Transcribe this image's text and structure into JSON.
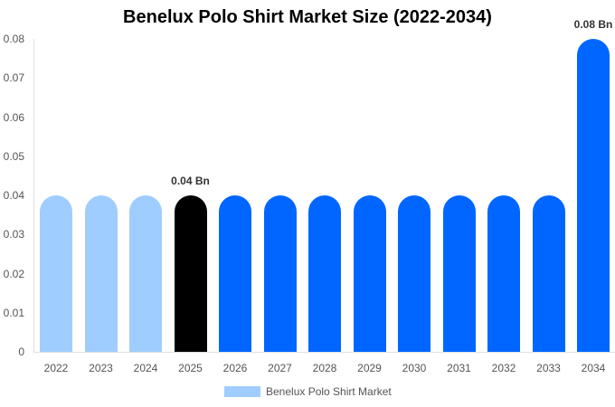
{
  "chart_data": {
    "type": "bar",
    "title": "Benelux Polo Shirt Market Size (2022-2034)",
    "xlabel": "",
    "ylabel": "",
    "ylim": [
      0,
      0.08
    ],
    "yticks": [
      "0.08",
      "0.07",
      "0.06",
      "0.05",
      "0.04",
      "0.03",
      "0.02",
      "0.01",
      "0"
    ],
    "categories": [
      "2022",
      "2023",
      "2024",
      "2025",
      "2026",
      "2027",
      "2028",
      "2029",
      "2030",
      "2031",
      "2032",
      "2033",
      "2034"
    ],
    "series": [
      {
        "name": "Benelux Polo Shirt Market",
        "values": [
          0.04,
          0.04,
          0.04,
          0.04,
          0.04,
          0.04,
          0.04,
          0.04,
          0.04,
          0.04,
          0.04,
          0.04,
          0.08
        ]
      }
    ],
    "bar_colors": [
      "#a0cdff",
      "#a0cdff",
      "#a0cdff",
      "#000000",
      "#0066ff",
      "#0066ff",
      "#0066ff",
      "#0066ff",
      "#0066ff",
      "#0066ff",
      "#0066ff",
      "#0066ff",
      "#0066ff"
    ],
    "annotations": [
      {
        "category": "2025",
        "text": "0.04 Bn"
      },
      {
        "category": "2034",
        "text": "0.08 Bn"
      }
    ],
    "legend": {
      "position": "bottom",
      "label": "Benelux Polo Shirt Market",
      "color": "#a0cdff"
    },
    "grid": false
  }
}
